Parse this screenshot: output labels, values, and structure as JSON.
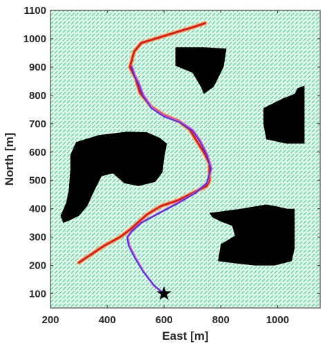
{
  "chart_data": {
    "type": "line",
    "title": "",
    "xlabel": "East [m]",
    "ylabel": "North [m]",
    "xlim": [
      200,
      1150
    ],
    "ylim": [
      50,
      1100
    ],
    "xticks": [
      200,
      400,
      600,
      800,
      1000
    ],
    "yticks": [
      100,
      200,
      300,
      400,
      500,
      600,
      700,
      800,
      900,
      1000,
      1100
    ],
    "grid": false,
    "background": "vector-field",
    "colors": {
      "field": "#48d494",
      "obstacle": "#000000",
      "red_path": "#e0181c",
      "blue_path": "#3434ee",
      "magenta_path": "#e64fd0",
      "orange_band": "#f5a04a",
      "goal_marker": "#000000"
    },
    "obstacles": [
      {
        "points": [
          [
            740,
            970
          ],
          [
            820,
            965
          ],
          [
            810,
            900
          ],
          [
            775,
            830
          ],
          [
            740,
            805
          ],
          [
            730,
            830
          ],
          [
            700,
            880
          ],
          [
            640,
            905
          ],
          [
            640,
            970
          ]
        ]
      },
      {
        "points": [
          [
            1070,
            825
          ],
          [
            1095,
            835
          ],
          [
            1095,
            630
          ],
          [
            1030,
            630
          ],
          [
            960,
            645
          ],
          [
            950,
            700
          ],
          [
            950,
            755
          ],
          [
            1020,
            790
          ],
          [
            1060,
            805
          ]
        ]
      },
      {
        "points": [
          [
            290,
            635
          ],
          [
            370,
            660
          ],
          [
            470,
            672
          ],
          [
            540,
            670
          ],
          [
            585,
            650
          ],
          [
            610,
            630
          ],
          [
            600,
            575
          ],
          [
            595,
            530
          ],
          [
            570,
            495
          ],
          [
            510,
            480
          ],
          [
            460,
            490
          ],
          [
            420,
            525
          ],
          [
            380,
            515
          ],
          [
            350,
            455
          ],
          [
            330,
            410
          ],
          [
            300,
            375
          ],
          [
            270,
            360
          ],
          [
            245,
            350
          ],
          [
            235,
            375
          ],
          [
            255,
            420
          ],
          [
            265,
            470
          ],
          [
            270,
            540
          ],
          [
            270,
            590
          ]
        ]
      },
      {
        "points": [
          [
            870,
            400
          ],
          [
            960,
            415
          ],
          [
            990,
            410
          ],
          [
            1035,
            400
          ],
          [
            1060,
            400
          ],
          [
            1060,
            260
          ],
          [
            1050,
            215
          ],
          [
            990,
            200
          ],
          [
            920,
            200
          ],
          [
            870,
            205
          ],
          [
            790,
            215
          ],
          [
            800,
            275
          ],
          [
            850,
            305
          ],
          [
            840,
            340
          ],
          [
            800,
            355
          ],
          [
            770,
            370
          ],
          [
            760,
            385
          ]
        ]
      }
    ],
    "goal": {
      "marker": "star",
      "x": 600,
      "y": 100
    },
    "series": [
      {
        "values": [
          [
            300,
            210
          ],
          [
            390,
            270
          ],
          [
            445,
            300
          ],
          [
            485,
            330
          ],
          [
            540,
            380
          ],
          [
            590,
            410
          ],
          [
            650,
            430
          ],
          [
            700,
            455
          ],
          [
            750,
            480
          ],
          [
            760,
            500
          ],
          [
            760,
            560
          ],
          [
            740,
            600
          ],
          [
            715,
            640
          ],
          [
            690,
            680
          ],
          [
            650,
            710
          ],
          [
            600,
            730
          ],
          [
            555,
            760
          ],
          [
            515,
            810
          ],
          [
            500,
            860
          ],
          [
            480,
            900
          ],
          [
            495,
            955
          ],
          [
            520,
            985
          ],
          [
            585,
            1005
          ],
          [
            650,
            1025
          ],
          [
            700,
            1040
          ],
          [
            745,
            1055
          ]
        ]
      },
      {
        "values": [
          [
            600,
            100
          ],
          [
            565,
            130
          ],
          [
            525,
            180
          ],
          [
            495,
            230
          ],
          [
            475,
            270
          ],
          [
            470,
            300
          ],
          [
            485,
            320
          ],
          [
            520,
            350
          ],
          [
            575,
            380
          ],
          [
            650,
            420
          ],
          [
            710,
            455
          ],
          [
            750,
            490
          ],
          [
            765,
            540
          ],
          [
            750,
            590
          ],
          [
            725,
            640
          ],
          [
            700,
            675
          ],
          [
            655,
            705
          ],
          [
            600,
            725
          ],
          [
            555,
            755
          ],
          [
            525,
            800
          ],
          [
            510,
            840
          ],
          [
            495,
            870
          ],
          [
            485,
            900
          ]
        ]
      },
      {
        "values": [
          [
            600,
            100
          ],
          [
            565,
            128
          ],
          [
            528,
            178
          ],
          [
            498,
            230
          ],
          [
            478,
            270
          ],
          [
            472,
            300
          ],
          [
            488,
            322
          ],
          [
            522,
            352
          ],
          [
            577,
            382
          ],
          [
            652,
            422
          ],
          [
            712,
            457
          ],
          [
            752,
            492
          ],
          [
            767,
            542
          ],
          [
            752,
            592
          ],
          [
            727,
            642
          ],
          [
            702,
            677
          ],
          [
            657,
            707
          ],
          [
            602,
            727
          ],
          [
            557,
            757
          ],
          [
            527,
            802
          ],
          [
            512,
            842
          ],
          [
            497,
            872
          ],
          [
            487,
            902
          ]
        ]
      }
    ]
  }
}
